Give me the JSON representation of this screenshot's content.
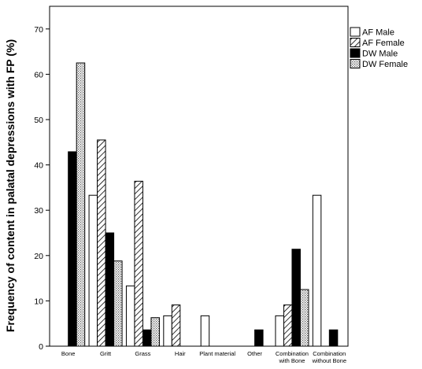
{
  "chart_data": {
    "type": "bar",
    "title": "",
    "xlabel": "",
    "ylabel": "Frequency of content in palatal depressions with FP (%)",
    "ylim": [
      0,
      75
    ],
    "yticks": [
      0,
      10,
      20,
      30,
      40,
      50,
      60,
      70
    ],
    "grid": false,
    "legend_position": "right",
    "categories": [
      [
        "Bone"
      ],
      [
        "Gritt"
      ],
      [
        "Grass"
      ],
      [
        "Hair"
      ],
      [
        "Plant material"
      ],
      [
        "Other"
      ],
      [
        "Combination",
        "with Bone"
      ],
      [
        "Combination",
        "without Bone"
      ]
    ],
    "series": [
      {
        "name": "AF Male",
        "pattern": "white",
        "values": [
          0,
          33.3,
          13.3,
          6.7,
          6.7,
          0,
          6.7,
          33.3
        ]
      },
      {
        "name": "AF Female",
        "pattern": "hatch",
        "values": [
          0,
          45.5,
          36.4,
          9.1,
          0,
          0,
          9.1,
          0
        ]
      },
      {
        "name": "DW Male",
        "pattern": "black",
        "values": [
          42.9,
          25.0,
          3.6,
          0,
          0,
          3.6,
          21.4,
          3.6
        ]
      },
      {
        "name": "DW Female",
        "pattern": "dots",
        "values": [
          62.5,
          18.8,
          6.3,
          0,
          0,
          0,
          12.5,
          0
        ]
      }
    ]
  }
}
